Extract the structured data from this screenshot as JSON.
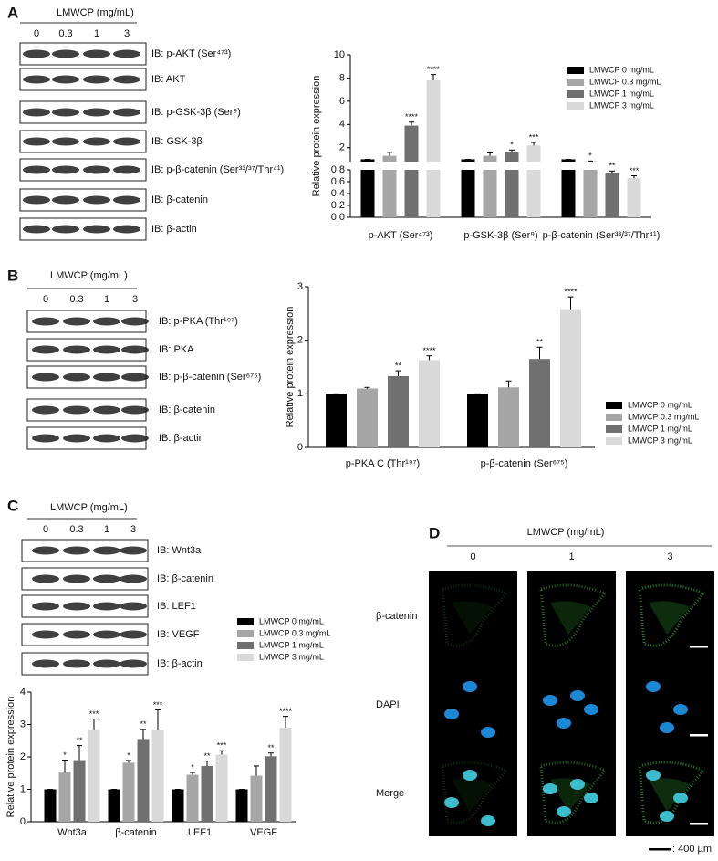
{
  "panel_labels": [
    "A",
    "B",
    "C",
    "D"
  ],
  "blots": [
    {
      "header": "LMWCP (mg/mL)",
      "doses": [
        "0",
        "0.3",
        "1",
        "3"
      ],
      "rows": [
        "IB: p-AKT (Ser⁴⁷³)",
        "IB: AKT",
        "IB: p-GSK-3β (Ser⁹)",
        "IB: GSK-3β",
        "IB: p-β-catenin (Ser³³/³⁷/Thr⁴¹)",
        "IB: β-catenin",
        "IB: β-actin"
      ]
    },
    {
      "header": "LMWCP (mg/mL)",
      "doses": [
        "0",
        "0.3",
        "1",
        "3"
      ],
      "rows": [
        "IB: p-PKA (Thr¹⁹⁷)",
        "IB: PKA",
        "IB: p-β-catenin (Ser⁶⁷⁵)",
        "IB: β-catenin",
        "IB: β-actin"
      ]
    },
    {
      "header": "LMWCP (mg/mL)",
      "doses": [
        "0",
        "0.3",
        "1",
        "3"
      ],
      "rows": [
        "IB: Wnt3a",
        "IB: β-catenin",
        "IB: LEF1",
        "IB: VEGF",
        "IB: β-actin"
      ]
    }
  ],
  "chart_data": [
    {
      "type": "bar",
      "y_label": "Relative protein expression",
      "categories": [
        "p-AKT (Ser⁴⁷³)",
        "p-GSK-3β (Ser⁹)",
        "p-β-catenin (Ser³³/³⁷/Thr⁴¹)"
      ],
      "y_segments": [
        {
          "ylim": [
            0,
            0.8
          ],
          "yticks": [
            {
              "value": 0,
              "label": "0.0"
            },
            0.2,
            0.4,
            0.6,
            0.8
          ]
        },
        {
          "ylim": [
            0.8,
            10
          ],
          "yticks": [
            2,
            4,
            6,
            8,
            10
          ]
        }
      ],
      "series": [
        {
          "name": "LMWCP  0 mg/mL",
          "color": "#000000",
          "values": [
            1,
            1,
            1
          ],
          "errors": [
            0,
            0,
            0
          ],
          "significance": [
            null,
            null,
            null
          ]
        },
        {
          "name": "LMWCP  0.3 mg/mL",
          "color": "#a6a6a6",
          "values": [
            1.3,
            1.3,
            0.82
          ],
          "errors": [
            0.3,
            0.25,
            0.03
          ],
          "significance": [
            null,
            null,
            "*"
          ]
        },
        {
          "name": "LMWCP  1 mg/mL",
          "color": "#707070",
          "values": [
            3.9,
            1.6,
            0.74
          ],
          "errors": [
            0.3,
            0.2,
            0.04
          ],
          "significance": [
            "****",
            "*",
            "**"
          ]
        },
        {
          "name": "LMWCP  3 mg/mL",
          "color": "#d9d9d9",
          "values": [
            7.8,
            2.2,
            0.66
          ],
          "errors": [
            0.5,
            0.25,
            0.04
          ],
          "significance": [
            "****",
            "***",
            "***"
          ]
        }
      ]
    },
    {
      "type": "bar",
      "y_label": "Relative protein expression",
      "categories": [
        "p-PKA C (Thr¹⁹⁷)",
        "p-β-catenin (Ser⁶⁷⁵)"
      ],
      "ylim": [
        0,
        3
      ],
      "yticks": [
        0,
        1,
        2,
        3
      ],
      "series": [
        {
          "name": "LMWCP  0 mg/mL",
          "color": "#000000",
          "values": [
            1,
            1
          ],
          "errors": [
            0,
            0
          ],
          "significance": [
            null,
            null
          ]
        },
        {
          "name": "LMWCP  0.3 mg/mL",
          "color": "#a6a6a6",
          "values": [
            1.1,
            1.12
          ],
          "errors": [
            0.02,
            0.12
          ],
          "significance": [
            null,
            null
          ]
        },
        {
          "name": "LMWCP  1 mg/mL",
          "color": "#707070",
          "values": [
            1.33,
            1.65
          ],
          "errors": [
            0.1,
            0.22
          ],
          "significance": [
            "**",
            "**"
          ]
        },
        {
          "name": "LMWCP  3 mg/mL",
          "color": "#d9d9d9",
          "values": [
            1.63,
            2.58
          ],
          "errors": [
            0.08,
            0.23
          ],
          "significance": [
            "****",
            "****"
          ]
        }
      ]
    },
    {
      "type": "bar",
      "y_label": "Relative protein expression",
      "categories": [
        "Wnt3a",
        "β-catenin",
        "LEF1",
        "VEGF"
      ],
      "ylim": [
        0,
        4
      ],
      "yticks": [
        0,
        1,
        2,
        3,
        4
      ],
      "series": [
        {
          "name": "LMWCP  0 mg/mL",
          "color": "#000000",
          "values": [
            1,
            1,
            1,
            1
          ],
          "errors": [
            0,
            0,
            0,
            0
          ],
          "significance": [
            null,
            null,
            null,
            null
          ]
        },
        {
          "name": "LMWCP  0.3 mg/mL",
          "color": "#a6a6a6",
          "values": [
            1.55,
            1.82,
            1.45,
            1.42
          ],
          "errors": [
            0.35,
            0.07,
            0.07,
            0.3
          ],
          "significance": [
            "*",
            "*",
            "*",
            null
          ]
        },
        {
          "name": "LMWCP  1 mg/mL",
          "color": "#707070",
          "values": [
            1.9,
            2.55,
            1.72,
            2.02
          ],
          "errors": [
            0.45,
            0.3,
            0.15,
            0.1
          ],
          "significance": [
            "**",
            "**",
            "**",
            "**"
          ]
        },
        {
          "name": "LMWCP  3 mg/mL",
          "color": "#d9d9d9",
          "values": [
            2.85,
            2.85,
            2.07,
            2.9
          ],
          "errors": [
            0.32,
            0.6,
            0.12,
            0.35
          ],
          "significance": [
            "***",
            "***",
            "***",
            "****"
          ]
        }
      ]
    }
  ],
  "imaging": {
    "header": "LMWCP (mg/mL)",
    "doses": [
      "0",
      "1",
      "3"
    ],
    "rows": [
      "β-catenin",
      "DAPI",
      "Merge"
    ],
    "scale_bar": ": 400 µm"
  }
}
